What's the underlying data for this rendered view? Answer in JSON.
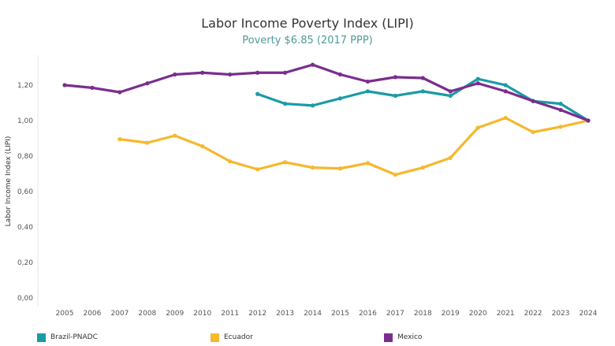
{
  "chart_data": {
    "type": "line",
    "title": "Labor Income Poverty Index (LIPI)",
    "subtitle": "Poverty $6.85 (2017 PPP)",
    "ylabel": "Labor Income Index (LIPI)",
    "xlabel": "",
    "x": [
      2005,
      2006,
      2007,
      2008,
      2009,
      2010,
      2011,
      2012,
      2013,
      2014,
      2015,
      2016,
      2017,
      2018,
      2019,
      2020,
      2021,
      2022,
      2023,
      2024
    ],
    "x_tick_labels": [
      "2005",
      "2006",
      "2007",
      "2008",
      "2009",
      "2010",
      "2011",
      "2012",
      "2013",
      "2014",
      "2015",
      "2016",
      "2017",
      "2018",
      "2019",
      "2020",
      "2021",
      "2022",
      "2023",
      "2024"
    ],
    "ylim": [
      0,
      1.4
    ],
    "y_ticks": [
      0,
      0.2,
      0.4,
      0.6,
      0.8,
      1.0,
      1.2
    ],
    "y_tick_labels": [
      "0,00",
      "0,20",
      "0,40",
      "0,60",
      "0,80",
      "1,00",
      "1,20"
    ],
    "grid": false,
    "legend_position": "bottom",
    "series": [
      {
        "name": "Brazil-PNADC",
        "color": "#1a9ba6",
        "values": [
          null,
          null,
          null,
          null,
          null,
          null,
          null,
          1.15,
          1.095,
          1.085,
          1.125,
          1.165,
          1.14,
          1.165,
          1.14,
          1.235,
          1.2,
          1.11,
          1.095,
          1.0
        ]
      },
      {
        "name": "Ecuador",
        "color": "#f5b82e",
        "values": [
          null,
          null,
          0.895,
          0.875,
          0.915,
          0.855,
          0.77,
          0.725,
          0.765,
          0.735,
          0.73,
          0.76,
          0.695,
          0.735,
          0.79,
          0.96,
          1.015,
          0.935,
          0.965,
          1.0
        ]
      },
      {
        "name": "Mexico",
        "color": "#7b2d8e",
        "values": [
          1.2,
          1.185,
          1.16,
          1.21,
          1.26,
          1.27,
          1.26,
          1.27,
          1.27,
          1.315,
          1.26,
          1.22,
          1.245,
          1.24,
          1.165,
          1.21,
          1.165,
          1.11,
          1.06,
          1.0
        ]
      }
    ]
  }
}
